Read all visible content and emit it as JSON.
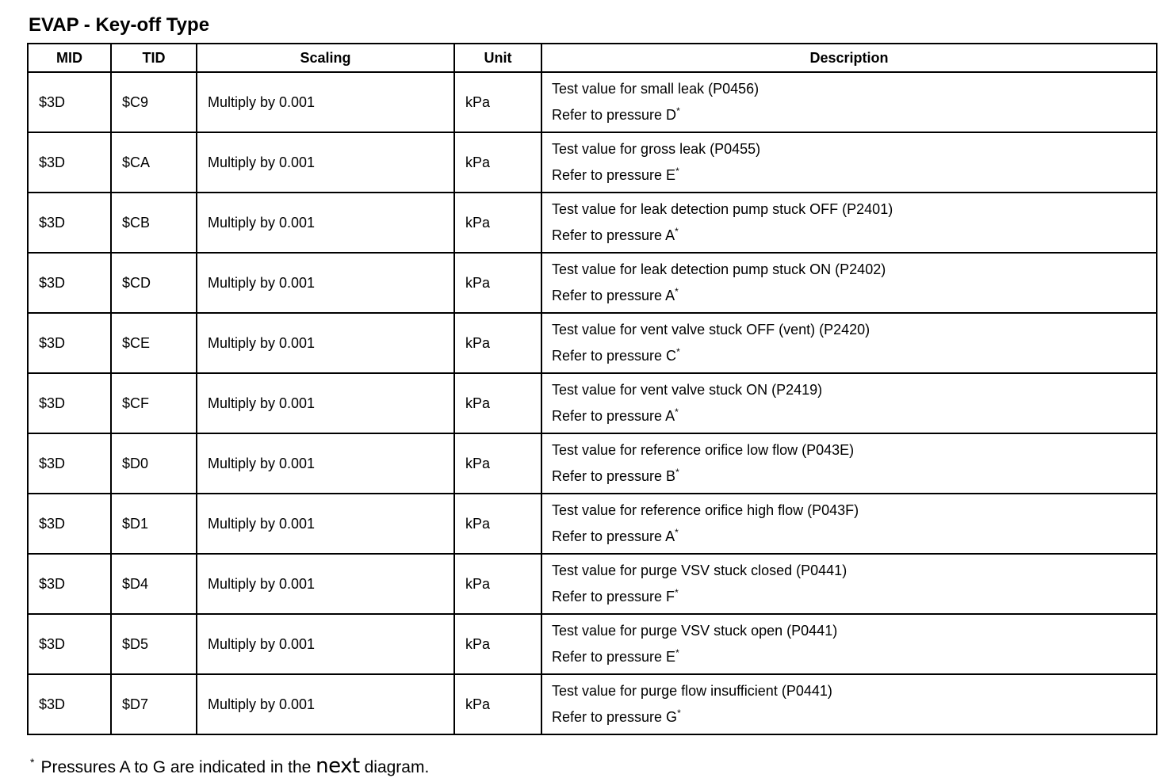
{
  "title": "EVAP - Key-off Type",
  "table": {
    "headers": {
      "mid": "MID",
      "tid": "TID",
      "scaling": "Scaling",
      "unit": "Unit",
      "description": "Description"
    },
    "rows": [
      {
        "mid": "$3D",
        "tid": "$C9",
        "scaling": "Multiply by 0.001",
        "unit": "kPa",
        "description_line1": "Test value for small leak (P0456)",
        "description_line2": "Refer to pressure D"
      },
      {
        "mid": "$3D",
        "tid": "$CA",
        "scaling": "Multiply by 0.001",
        "unit": "kPa",
        "description_line1": "Test value for gross leak (P0455)",
        "description_line2": "Refer to pressure E"
      },
      {
        "mid": "$3D",
        "tid": "$CB",
        "scaling": "Multiply by 0.001",
        "unit": "kPa",
        "description_line1": "Test value for leak detection pump stuck OFF (P2401)",
        "description_line2": "Refer to pressure A"
      },
      {
        "mid": "$3D",
        "tid": "$CD",
        "scaling": "Multiply by 0.001",
        "unit": "kPa",
        "description_line1": "Test value for leak detection pump stuck ON (P2402)",
        "description_line2": "Refer to pressure A"
      },
      {
        "mid": "$3D",
        "tid": "$CE",
        "scaling": "Multiply by 0.001",
        "unit": "kPa",
        "description_line1": "Test value for vent valve stuck OFF (vent) (P2420)",
        "description_line2": "Refer to pressure C"
      },
      {
        "mid": "$3D",
        "tid": "$CF",
        "scaling": "Multiply by 0.001",
        "unit": "kPa",
        "description_line1": "Test value for vent valve stuck ON (P2419)",
        "description_line2": "Refer to pressure A"
      },
      {
        "mid": "$3D",
        "tid": "$D0",
        "scaling": "Multiply by 0.001",
        "unit": "kPa",
        "description_line1": "Test value for reference orifice low flow (P043E)",
        "description_line2": "Refer to pressure B"
      },
      {
        "mid": "$3D",
        "tid": "$D1",
        "scaling": "Multiply by 0.001",
        "unit": "kPa",
        "description_line1": "Test value for reference orifice high flow (P043F)",
        "description_line2": "Refer to pressure A"
      },
      {
        "mid": "$3D",
        "tid": "$D4",
        "scaling": "Multiply by 0.001",
        "unit": "kPa",
        "description_line1": "Test value for purge VSV stuck closed (P0441)",
        "description_line2": "Refer to pressure F"
      },
      {
        "mid": "$3D",
        "tid": "$D5",
        "scaling": "Multiply by 0.001",
        "unit": "kPa",
        "description_line1": "Test value for purge VSV stuck open (P0441)",
        "description_line2": "Refer to pressure E"
      },
      {
        "mid": "$3D",
        "tid": "$D7",
        "scaling": "Multiply by 0.001",
        "unit": "kPa",
        "description_line1": "Test value for purge flow insufficient (P0441)",
        "description_line2": "Refer to pressure G"
      }
    ]
  },
  "footnote": {
    "mark": "*",
    "prefix": "Pressures A to G are indicated in the ",
    "highlight": "next",
    "suffix": " diagram."
  }
}
